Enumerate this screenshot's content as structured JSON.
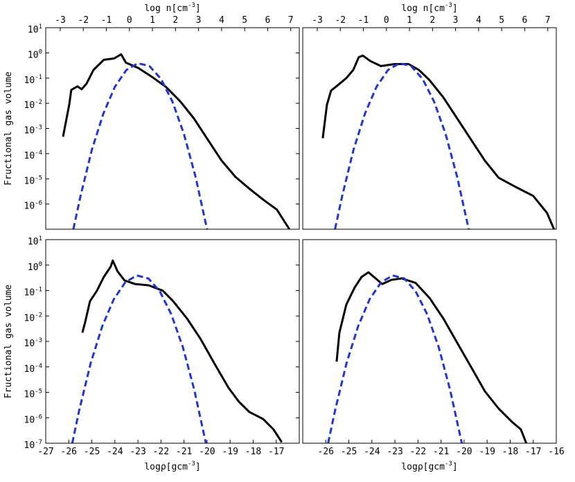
{
  "chart_data": [
    {
      "type": "line",
      "ylabel": "Fructional gas volume",
      "log_y": true,
      "xlim": [
        -27,
        -16
      ],
      "ylim": [
        1e-07,
        10
      ],
      "x2label": "log n[cm^-3]",
      "x2lim": [
        -3.63,
        7.37
      ],
      "x2ticks": [
        -3,
        -2,
        -1,
        0,
        1,
        2,
        3,
        4,
        5,
        6,
        7
      ],
      "yticks": [
        {
          "value": 10,
          "label": "10^1"
        },
        {
          "value": 1,
          "label": "10^0"
        },
        {
          "value": 0.1,
          "label": "10^-1"
        },
        {
          "value": 0.01,
          "label": "10^-2"
        },
        {
          "value": 0.001,
          "label": "10^-3"
        },
        {
          "value": 0.0001,
          "label": "10^-4"
        },
        {
          "value": 1e-05,
          "label": "10^-5"
        },
        {
          "value": 1e-06,
          "label": "10^-6"
        }
      ],
      "series": [
        {
          "color": "#000000",
          "dashed": false,
          "x": [
            -26.25,
            -25.98,
            -25.89,
            -25.62,
            -25.44,
            -25.23,
            -24.93,
            -24.48,
            -24.03,
            -23.73,
            -23.52,
            -22.98,
            -22.38,
            -21.78,
            -21.17,
            -20.57,
            -19.97,
            -19.37,
            -18.77,
            -18.17,
            -17.57,
            -16.97,
            -16.43
          ],
          "values": [
            0.00047,
            0.0087,
            0.034,
            0.047,
            0.036,
            0.06,
            0.21,
            0.53,
            0.6,
            0.88,
            0.41,
            0.25,
            0.11,
            0.044,
            0.012,
            0.0025,
            0.00036,
            5.3e-05,
            1.2e-05,
            4.1e-06,
            1.5e-06,
            6e-07,
            1e-07
          ]
        },
        {
          "color": "#1f35d6",
          "dashed": true,
          "x": [
            -25.8,
            -25.5,
            -25.0,
            -24.5,
            -24.0,
            -23.5,
            -23.0,
            -22.5,
            -22.0,
            -21.5,
            -21.0,
            -20.5,
            -20.0
          ],
          "values": [
            1e-07,
            1.9e-06,
            0.00014,
            0.0039,
            0.045,
            0.21,
            0.39,
            0.3,
            0.093,
            0.0115,
            0.00059,
            1.2e-05,
            1e-07
          ]
        }
      ]
    },
    {
      "type": "line",
      "log_y": true,
      "xlim": [
        -27,
        -16
      ],
      "ylim": [
        1e-07,
        10
      ],
      "x2label": "log n[cm^-3]",
      "x2lim": [
        -3.63,
        7.37
      ],
      "x2ticks": [
        -3,
        -2,
        -1,
        0,
        1,
        2,
        3,
        4,
        5,
        6,
        7
      ],
      "series": [
        {
          "color": "#000000",
          "dashed": false,
          "x": [
            -26.13,
            -25.95,
            -25.77,
            -25.47,
            -25.11,
            -24.81,
            -24.57,
            -24.39,
            -24.06,
            -23.61,
            -23.01,
            -22.41,
            -21.96,
            -21.5,
            -20.9,
            -20.3,
            -19.7,
            -19.1,
            -18.5,
            -17.75,
            -17.0,
            -16.4,
            -16.1
          ],
          "values": [
            0.00041,
            0.0087,
            0.032,
            0.053,
            0.1,
            0.21,
            0.68,
            0.78,
            0.47,
            0.3,
            0.36,
            0.36,
            0.21,
            0.083,
            0.017,
            0.0025,
            0.00036,
            5.3e-05,
            1.1e-05,
            4.7e-06,
            2.1e-06,
            4.4e-07,
            1e-07
          ]
        },
        {
          "color": "#1f35d6",
          "dashed": true,
          "x": [
            -25.6,
            -25.3,
            -24.8,
            -24.3,
            -23.8,
            -23.3,
            -22.8,
            -22.3,
            -21.8,
            -21.3,
            -20.8,
            -20.3,
            -19.8
          ],
          "values": [
            1e-07,
            1.9e-06,
            0.00014,
            0.0039,
            0.045,
            0.21,
            0.39,
            0.3,
            0.093,
            0.0115,
            0.00059,
            1.2e-05,
            1e-07
          ]
        }
      ]
    },
    {
      "type": "line",
      "ylabel": "Fructional gas volume",
      "xlabel": "logρ[gcm^-3]",
      "log_y": true,
      "xlim": [
        -27,
        -16
      ],
      "ylim": [
        1e-07,
        10
      ],
      "xticks": [
        -27,
        -26,
        -25,
        -24,
        -23,
        -22,
        -21,
        -20,
        -19,
        -18,
        -17
      ],
      "yticks": [
        {
          "value": 10,
          "label": "10^1"
        },
        {
          "value": 1,
          "label": "10^0"
        },
        {
          "value": 0.1,
          "label": "10^-1"
        },
        {
          "value": 0.01,
          "label": "10^-2"
        },
        {
          "value": 0.001,
          "label": "10^-3"
        },
        {
          "value": 0.0001,
          "label": "10^-4"
        },
        {
          "value": 1e-05,
          "label": "10^-5"
        },
        {
          "value": 1e-06,
          "label": "10^-6"
        },
        {
          "value": 1e-07,
          "label": "10^-7"
        }
      ],
      "series": [
        {
          "color": "#000000",
          "dashed": false,
          "x": [
            -25.41,
            -25.29,
            -25.08,
            -24.78,
            -24.48,
            -24.18,
            -24.09,
            -23.88,
            -23.58,
            -23.13,
            -22.53,
            -21.92,
            -21.47,
            -20.87,
            -20.27,
            -19.67,
            -19.07,
            -18.62,
            -18.17,
            -17.57,
            -17.12,
            -16.76
          ],
          "values": [
            0.0022,
            0.0057,
            0.038,
            0.098,
            0.34,
            0.87,
            1.5,
            0.56,
            0.25,
            0.18,
            0.16,
            0.098,
            0.038,
            0.0079,
            0.0012,
            0.00013,
            1.5e-05,
            4.3e-06,
            1.7e-06,
            8.9e-07,
            3.5e-07,
            1.1e-07
          ]
        },
        {
          "color": "#1f35d6",
          "dashed": true,
          "x": [
            -25.85,
            -25.55,
            -25.05,
            -24.55,
            -24.05,
            -23.55,
            -23.05,
            -22.55,
            -22.05,
            -21.55,
            -21.05,
            -20.55,
            -20.05
          ],
          "values": [
            1e-07,
            1.9e-06,
            0.00014,
            0.0039,
            0.045,
            0.21,
            0.39,
            0.3,
            0.093,
            0.0115,
            0.00059,
            1.2e-05,
            1e-07
          ]
        }
      ]
    },
    {
      "type": "line",
      "xlabel": "logρ[gcm^-3]",
      "log_y": true,
      "xlim": [
        -27,
        -16
      ],
      "ylim": [
        1e-07,
        10
      ],
      "xticks": [
        -26,
        -25,
        -24,
        -23,
        -22,
        -21,
        -20,
        -19,
        -18,
        -17,
        -16
      ],
      "series": [
        {
          "color": "#000000",
          "dashed": false,
          "x": [
            -25.53,
            -25.41,
            -25.11,
            -24.75,
            -24.45,
            -24.15,
            -23.91,
            -23.55,
            -23.16,
            -22.71,
            -22.11,
            -21.5,
            -20.9,
            -20.3,
            -19.7,
            -19.1,
            -18.5,
            -17.9,
            -17.54,
            -17.3
          ],
          "values": [
            0.00016,
            0.0022,
            0.028,
            0.13,
            0.34,
            0.52,
            0.34,
            0.18,
            0.26,
            0.3,
            0.2,
            0.051,
            0.0079,
            0.00089,
            0.0001,
            1.1e-05,
            2.3e-06,
            6.6e-07,
            3.5e-07,
            1e-07
          ]
        },
        {
          "color": "#1f35d6",
          "dashed": true,
          "x": [
            -25.9,
            -25.6,
            -25.1,
            -24.6,
            -24.1,
            -23.6,
            -23.1,
            -22.6,
            -22.1,
            -21.6,
            -21.1,
            -20.6,
            -20.1
          ],
          "values": [
            1e-07,
            1.9e-06,
            0.00014,
            0.0039,
            0.045,
            0.21,
            0.39,
            0.3,
            0.093,
            0.0115,
            0.00059,
            1.2e-05,
            1e-07
          ]
        }
      ]
    }
  ]
}
